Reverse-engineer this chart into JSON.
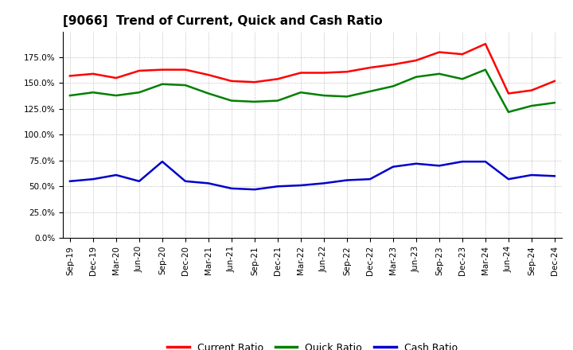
{
  "title": "[9066]  Trend of Current, Quick and Cash Ratio",
  "x_labels": [
    "Sep-19",
    "Dec-19",
    "Mar-20",
    "Jun-20",
    "Sep-20",
    "Dec-20",
    "Mar-21",
    "Jun-21",
    "Sep-21",
    "Dec-21",
    "Mar-22",
    "Jun-22",
    "Sep-22",
    "Dec-22",
    "Mar-23",
    "Jun-23",
    "Sep-23",
    "Dec-23",
    "Mar-24",
    "Jun-24",
    "Sep-24",
    "Dec-24"
  ],
  "current_ratio": [
    157,
    159,
    155,
    162,
    163,
    163,
    158,
    152,
    151,
    154,
    160,
    160,
    161,
    165,
    168,
    172,
    180,
    178,
    188,
    140,
    143,
    152
  ],
  "quick_ratio": [
    138,
    141,
    138,
    141,
    149,
    148,
    140,
    133,
    132,
    133,
    141,
    138,
    137,
    142,
    147,
    156,
    159,
    154,
    163,
    122,
    128,
    131
  ],
  "cash_ratio": [
    55,
    57,
    61,
    55,
    74,
    55,
    53,
    48,
    47,
    50,
    51,
    53,
    56,
    57,
    69,
    72,
    70,
    74,
    74,
    57,
    61,
    60
  ],
  "ylim": [
    0,
    200
  ],
  "yticks": [
    0,
    25,
    50,
    75,
    100,
    125,
    150,
    175
  ],
  "current_color": "#FF0000",
  "quick_color": "#008000",
  "cash_color": "#0000CC",
  "background_color": "#FFFFFF",
  "plot_bg_color": "#FFFFFF",
  "grid_color": "#AAAAAA",
  "linewidth": 1.8,
  "title_fontsize": 11,
  "tick_fontsize": 7.5,
  "legend_fontsize": 9
}
